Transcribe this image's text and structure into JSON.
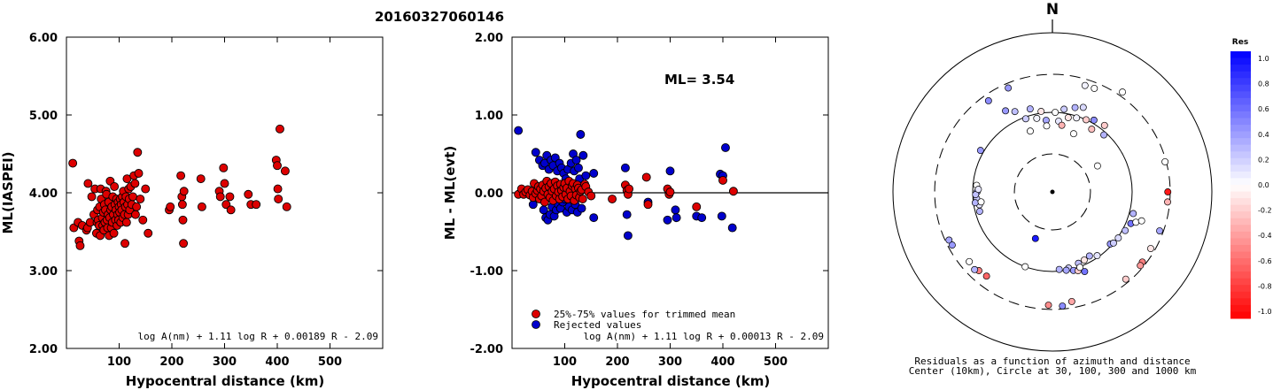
{
  "title": "20160327060146",
  "chart_data": [
    {
      "type": "scatter",
      "id": "ml-vs-distance",
      "xlabel": "Hypocentral distance (km)",
      "ylabel": "ML(IASPEI)",
      "xlim": [
        0,
        600
      ],
      "ylim": [
        2.0,
        6.0
      ],
      "xticks": [
        "100",
        "200",
        "300",
        "400",
        "500"
      ],
      "yticks": [
        "2.00",
        "3.00",
        "4.00",
        "5.00",
        "6.00"
      ],
      "formula": "log A(nm) + 1.11 log R + 0.00189 R - 2.09",
      "point_color": "#dd0000",
      "points": [
        [
          12,
          4.38
        ],
        [
          14,
          3.55
        ],
        [
          22,
          3.62
        ],
        [
          24,
          3.38
        ],
        [
          26,
          3.32
        ],
        [
          30,
          3.58
        ],
        [
          38,
          3.52
        ],
        [
          40,
          3.55
        ],
        [
          41,
          4.12
        ],
        [
          45,
          3.62
        ],
        [
          48,
          3.95
        ],
        [
          52,
          3.72
        ],
        [
          54,
          4.05
        ],
        [
          57,
          3.48
        ],
        [
          58,
          3.62
        ],
        [
          59,
          3.78
        ],
        [
          60,
          3.65
        ],
        [
          62,
          3.58
        ],
        [
          63,
          3.82
        ],
        [
          64,
          3.45
        ],
        [
          65,
          4.05
        ],
        [
          66,
          3.92
        ],
        [
          68,
          3.68
        ],
        [
          69,
          3.58
        ],
        [
          70,
          3.75
        ],
        [
          71,
          3.52
        ],
        [
          72,
          3.85
        ],
        [
          73,
          3.62
        ],
        [
          74,
          3.78
        ],
        [
          75,
          4.02
        ],
        [
          76,
          3.98
        ],
        [
          77,
          3.65
        ],
        [
          78,
          3.55
        ],
        [
          79,
          3.72
        ],
        [
          80,
          3.88
        ],
        [
          81,
          3.45
        ],
        [
          82,
          3.68
        ],
        [
          83,
          4.15
        ],
        [
          84,
          3.78
        ],
        [
          85,
          3.55
        ],
        [
          86,
          3.82
        ],
        [
          87,
          3.62
        ],
        [
          88,
          3.95
        ],
        [
          89,
          3.72
        ],
        [
          90,
          3.48
        ],
        [
          91,
          4.08
        ],
        [
          92,
          3.85
        ],
        [
          93,
          3.65
        ],
        [
          94,
          3.78
        ],
        [
          95,
          3.92
        ],
        [
          96,
          3.58
        ],
        [
          97,
          3.72
        ],
        [
          98,
          3.88
        ],
        [
          99,
          3.65
        ],
        [
          100,
          3.82
        ],
        [
          101,
          3.75
        ],
        [
          102,
          3.92
        ],
        [
          103,
          3.62
        ],
        [
          104,
          3.85
        ],
        [
          105,
          3.78
        ],
        [
          106,
          3.95
        ],
        [
          107,
          3.68
        ],
        [
          108,
          4.02
        ],
        [
          109,
          3.88
        ],
        [
          110,
          3.72
        ],
        [
          111,
          3.35
        ],
        [
          112,
          3.82
        ],
        [
          113,
          3.95
        ],
        [
          114,
          3.62
        ],
        [
          115,
          4.18
        ],
        [
          116,
          3.85
        ],
        [
          117,
          3.72
        ],
        [
          118,
          4.05
        ],
        [
          119,
          3.92
        ],
        [
          120,
          3.78
        ],
        [
          122,
          4.08
        ],
        [
          124,
          3.85
        ],
        [
          126,
          3.95
        ],
        [
          128,
          4.22
        ],
        [
          130,
          4.12
        ],
        [
          131,
          3.72
        ],
        [
          133,
          3.82
        ],
        [
          135,
          4.52
        ],
        [
          137,
          4.25
        ],
        [
          140,
          3.92
        ],
        [
          145,
          3.65
        ],
        [
          150,
          4.05
        ],
        [
          155,
          3.48
        ],
        [
          195,
          3.78
        ],
        [
          197,
          3.82
        ],
        [
          217,
          4.22
        ],
        [
          219,
          3.95
        ],
        [
          220,
          3.85
        ],
        [
          221,
          3.65
        ],
        [
          222,
          3.35
        ],
        [
          223,
          4.02
        ],
        [
          255,
          4.18
        ],
        [
          257,
          3.82
        ],
        [
          290,
          4.02
        ],
        [
          292,
          3.95
        ],
        [
          298,
          4.32
        ],
        [
          300,
          4.12
        ],
        [
          303,
          3.85
        ],
        [
          310,
          3.95
        ],
        [
          312,
          3.78
        ],
        [
          345,
          3.98
        ],
        [
          350,
          3.85
        ],
        [
          360,
          3.85
        ],
        [
          398,
          4.42
        ],
        [
          400,
          4.35
        ],
        [
          401,
          4.05
        ],
        [
          402,
          3.92
        ],
        [
          405,
          4.82
        ],
        [
          415,
          4.28
        ],
        [
          418,
          3.82
        ]
      ]
    },
    {
      "type": "scatter",
      "id": "residual-vs-distance",
      "xlabel": "Hypocentral distance (km)",
      "ylabel": "ML - ML(evt)",
      "xlim": [
        0,
        600
      ],
      "ylim": [
        -2.0,
        2.0
      ],
      "xticks": [
        "100",
        "200",
        "300",
        "400",
        "500"
      ],
      "yticks": [
        "-2.00",
        "-1.00",
        "0.00",
        "1.00",
        "2.00"
      ],
      "annotation": "ML= 3.54",
      "formula": "log A(nm) + 1.11 log R + 0.00013 R - 2.09",
      "legend": {
        "position": "bottom-left",
        "entries": [
          {
            "label": "25%-75% values for trimmed mean",
            "color": "#dd0000"
          },
          {
            "label": "Rejected values",
            "color": "#0000cc"
          }
        ]
      },
      "trimmed": [
        [
          12,
          -0.02
        ],
        [
          18,
          0.05
        ],
        [
          22,
          -0.02
        ],
        [
          26,
          0.01
        ],
        [
          30,
          0.04
        ],
        [
          34,
          -0.03
        ],
        [
          38,
          0.02
        ],
        [
          40,
          -0.06
        ],
        [
          42,
          0.12
        ],
        [
          45,
          -0.01
        ],
        [
          48,
          0.03
        ],
        [
          50,
          0.08
        ],
        [
          52,
          -0.08
        ],
        [
          54,
          0.05
        ],
        [
          56,
          -0.04
        ],
        [
          58,
          0.1
        ],
        [
          60,
          0.02
        ],
        [
          62,
          -0.12
        ],
        [
          64,
          0.06
        ],
        [
          66,
          0.15
        ],
        [
          68,
          -0.02
        ],
        [
          70,
          0.08
        ],
        [
          72,
          -0.06
        ],
        [
          74,
          0.12
        ],
        [
          76,
          0.02
        ],
        [
          78,
          -0.1
        ],
        [
          80,
          0.05
        ],
        [
          82,
          0.14
        ],
        [
          84,
          -0.04
        ],
        [
          86,
          0.09
        ],
        [
          88,
          0.01
        ],
        [
          90,
          -0.08
        ],
        [
          92,
          0.11
        ],
        [
          94,
          0.03
        ],
        [
          96,
          -0.05
        ],
        [
          98,
          0.07
        ],
        [
          100,
          0.12
        ],
        [
          102,
          -0.02
        ],
        [
          104,
          0.06
        ],
        [
          106,
          -0.08
        ],
        [
          108,
          0.15
        ],
        [
          110,
          0.02
        ],
        [
          112,
          -0.04
        ],
        [
          114,
          0.09
        ],
        [
          116,
          0.12
        ],
        [
          118,
          -0.1
        ],
        [
          120,
          0.05
        ],
        [
          122,
          -0.03
        ],
        [
          124,
          0.1
        ],
        [
          126,
          0.06
        ],
        [
          128,
          -0.06
        ],
        [
          130,
          0.02
        ],
        [
          132,
          0.04
        ],
        [
          134,
          -0.08
        ],
        [
          138,
          0.11
        ],
        [
          140,
          0.08
        ],
        [
          145,
          0.01
        ],
        [
          150,
          -0.04
        ],
        [
          190,
          -0.08
        ],
        [
          215,
          0.1
        ],
        [
          218,
          0.03
        ],
        [
          220,
          -0.02
        ],
        [
          222,
          0.05
        ],
        [
          255,
          0.2
        ],
        [
          258,
          -0.15
        ],
        [
          295,
          0.05
        ],
        [
          298,
          -0.02
        ],
        [
          300,
          0.01
        ],
        [
          350,
          -0.18
        ],
        [
          400,
          0.16
        ],
        [
          420,
          0.02
        ]
      ],
      "rejected": [
        [
          12,
          0.8
        ],
        [
          40,
          -0.15
        ],
        [
          45,
          0.52
        ],
        [
          52,
          0.42
        ],
        [
          58,
          0.35
        ],
        [
          60,
          -0.22
        ],
        [
          62,
          0.38
        ],
        [
          64,
          -0.32
        ],
        [
          66,
          0.48
        ],
        [
          68,
          -0.35
        ],
        [
          70,
          0.3
        ],
        [
          72,
          -0.28
        ],
        [
          74,
          0.42
        ],
        [
          76,
          -0.18
        ],
        [
          78,
          0.35
        ],
        [
          80,
          -0.3
        ],
        [
          82,
          0.45
        ],
        [
          84,
          -0.22
        ],
        [
          86,
          0.28
        ],
        [
          88,
          -0.15
        ],
        [
          90,
          0.38
        ],
        [
          92,
          -0.2
        ],
        [
          94,
          0.32
        ],
        [
          96,
          -0.12
        ],
        [
          98,
          0.25
        ],
        [
          100,
          -0.08
        ],
        [
          102,
          0.18
        ],
        [
          104,
          -0.25
        ],
        [
          106,
          0.3
        ],
        [
          108,
          -0.18
        ],
        [
          112,
          0.38
        ],
        [
          114,
          -0.22
        ],
        [
          116,
          0.5
        ],
        [
          118,
          0.28
        ],
        [
          120,
          -0.15
        ],
        [
          122,
          0.42
        ],
        [
          124,
          -0.25
        ],
        [
          126,
          0.32
        ],
        [
          128,
          0.18
        ],
        [
          130,
          0.75
        ],
        [
          132,
          -0.2
        ],
        [
          135,
          0.48
        ],
        [
          140,
          0.22
        ],
        [
          155,
          -0.32
        ],
        [
          155,
          0.25
        ],
        [
          215,
          0.32
        ],
        [
          218,
          -0.28
        ],
        [
          220,
          -0.55
        ],
        [
          258,
          -0.12
        ],
        [
          295,
          -0.35
        ],
        [
          300,
          0.28
        ],
        [
          310,
          -0.22
        ],
        [
          312,
          -0.32
        ],
        [
          350,
          -0.3
        ],
        [
          360,
          -0.32
        ],
        [
          395,
          0.24
        ],
        [
          398,
          -0.3
        ],
        [
          400,
          0.22
        ],
        [
          405,
          0.58
        ],
        [
          418,
          -0.45
        ]
      ]
    },
    {
      "type": "polar-scatter",
      "id": "residuals-azimuth",
      "north_label": "N",
      "caption_line1": "Residuals as a function of azimuth and distance",
      "caption_line2": "Center (10km), Circle at 30, 100, 300 and 1000 km",
      "rings_km": [
        30,
        100,
        300,
        1000
      ],
      "colorbar": {
        "title": "Res",
        "ticks": [
          "1.0",
          "0.8",
          "0.6",
          "0.4",
          "0.2",
          "0.0",
          "-0.2",
          "-0.4",
          "-0.6",
          "-0.8",
          "-1.0"
        ],
        "max_color": "#0000ff",
        "zero_color": "#ffffff",
        "min_color": "#ff0000"
      },
      "points": [
        [
          78,
          5,
          0.1
        ],
        [
          90,
          12,
          -0.1
        ],
        [
          112,
          8,
          0.2
        ],
        [
          125,
          15,
          0.3
        ],
        [
          95,
          18,
          0.05
        ],
        [
          100,
          25,
          -0.2
        ],
        [
          135,
          20,
          0.15
        ],
        [
          110,
          30,
          0.45
        ],
        [
          85,
          32,
          -0.25
        ],
        [
          80,
          355,
          0.35
        ],
        [
          88,
          348,
          0.05
        ],
        [
          95,
          340,
          0.2
        ],
        [
          120,
          345,
          0.3
        ],
        [
          105,
          352,
          -0.1
        ],
        [
          130,
          335,
          0.25
        ],
        [
          150,
          330,
          0.4
        ],
        [
          100,
          2,
          0.0
        ],
        [
          70,
          8,
          -0.3
        ],
        [
          115,
          38,
          -0.2
        ],
        [
          92,
          42,
          0.3
        ],
        [
          60,
          20,
          0.0
        ],
        [
          65,
          340,
          0.0
        ],
        [
          110,
          300,
          0.4
        ],
        [
          250,
          325,
          0.45
        ],
        [
          262,
          337,
          0.4
        ],
        [
          250,
          17,
          0.05
        ],
        [
          253,
          22,
          0.0
        ],
        [
          340,
          35,
          0.0
        ],
        [
          290,
          75,
          0.0
        ],
        [
          280,
          90,
          -0.9
        ],
        [
          282,
          95,
          -0.3
        ],
        [
          270,
          110,
          0.35
        ],
        [
          265,
          120,
          -0.1
        ],
        [
          270,
          128,
          -0.5
        ],
        [
          275,
          130,
          -0.4
        ],
        [
          112,
          105,
          0.3
        ],
        [
          115,
          112,
          0.55
        ],
        [
          108,
          118,
          0.25
        ],
        [
          102,
          125,
          0.15
        ],
        [
          95,
          132,
          0.4
        ],
        [
          100,
          130,
          0.2
        ],
        [
          95,
          145,
          0.1
        ],
        [
          85,
          150,
          0.3
        ],
        [
          90,
          160,
          0.25
        ],
        [
          95,
          168,
          0.2
        ],
        [
          100,
          170,
          0.35
        ],
        [
          105,
          165,
          0.4
        ],
        [
          110,
          162,
          -0.2
        ],
        [
          120,
          158,
          0.55
        ],
        [
          88,
          155,
          -0.1
        ],
        [
          102,
          160,
          0.0
        ],
        [
          95,
          175,
          0.3
        ],
        [
          270,
          140,
          -0.2
        ],
        [
          250,
          170,
          -0.35
        ],
        [
          275,
          175,
          0.45
        ],
        [
          265,
          182,
          -0.45
        ],
        [
          100,
          200,
          0.0
        ],
        [
          220,
          218,
          -0.6
        ],
        [
          225,
          223,
          -0.5
        ],
        [
          240,
          225,
          0.3
        ],
        [
          230,
          230,
          0.0
        ],
        [
          270,
          245,
          0.35
        ],
        [
          265,
          242,
          0.4
        ],
        [
          88,
          255,
          0.3
        ],
        [
          85,
          260,
          0.1
        ],
        [
          90,
          265,
          0.2
        ],
        [
          88,
          270,
          0.45
        ],
        [
          90,
          275,
          0.0
        ],
        [
          92,
          268,
          0.25
        ],
        [
          95,
          262,
          0.3
        ],
        [
          85,
          272,
          0.1
        ],
        [
          80,
          262,
          0.0
        ],
        [
          42,
          200,
          0.9
        ],
        [
          45,
          60,
          0.0
        ],
        [
          68,
          355,
          0.0
        ],
        [
          130,
          110,
          0.0
        ],
        [
          150,
          108,
          0.0
        ]
      ]
    }
  ]
}
